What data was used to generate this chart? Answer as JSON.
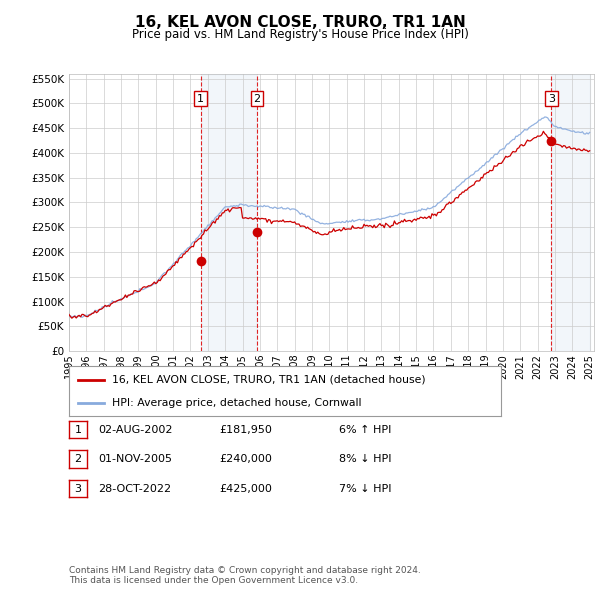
{
  "title": "16, KEL AVON CLOSE, TRURO, TR1 1AN",
  "subtitle": "Price paid vs. HM Land Registry's House Price Index (HPI)",
  "ylim": [
    0,
    560000
  ],
  "yticks": [
    0,
    50000,
    100000,
    150000,
    200000,
    250000,
    300000,
    350000,
    400000,
    450000,
    500000,
    550000
  ],
  "ytick_labels": [
    "£0",
    "£50K",
    "£100K",
    "£150K",
    "£200K",
    "£250K",
    "£300K",
    "£350K",
    "£400K",
    "£450K",
    "£500K",
    "£550K"
  ],
  "background_color": "#ffffff",
  "plot_bg_color": "#ffffff",
  "grid_color": "#cccccc",
  "sale_color": "#cc0000",
  "hpi_color": "#88aadd",
  "sale_dates": [
    2002.58,
    2005.83,
    2022.79
  ],
  "sale_prices": [
    181950,
    240000,
    425000
  ],
  "sale_labels": [
    "1",
    "2",
    "3"
  ],
  "legend_label_sale": "16, KEL AVON CLOSE, TRURO, TR1 1AN (detached house)",
  "legend_label_hpi": "HPI: Average price, detached house, Cornwall",
  "table": [
    {
      "num": "1",
      "date": "02-AUG-2002",
      "price": "£181,950",
      "pct": "6% ↑ HPI"
    },
    {
      "num": "2",
      "date": "01-NOV-2005",
      "price": "£240,000",
      "pct": "8% ↓ HPI"
    },
    {
      "num": "3",
      "date": "28-OCT-2022",
      "price": "£425,000",
      "pct": "7% ↓ HPI"
    }
  ],
  "footnote": "Contains HM Land Registry data © Crown copyright and database right 2024.\nThis data is licensed under the Open Government Licence v3.0.",
  "start_year": 1995,
  "end_year": 2025
}
